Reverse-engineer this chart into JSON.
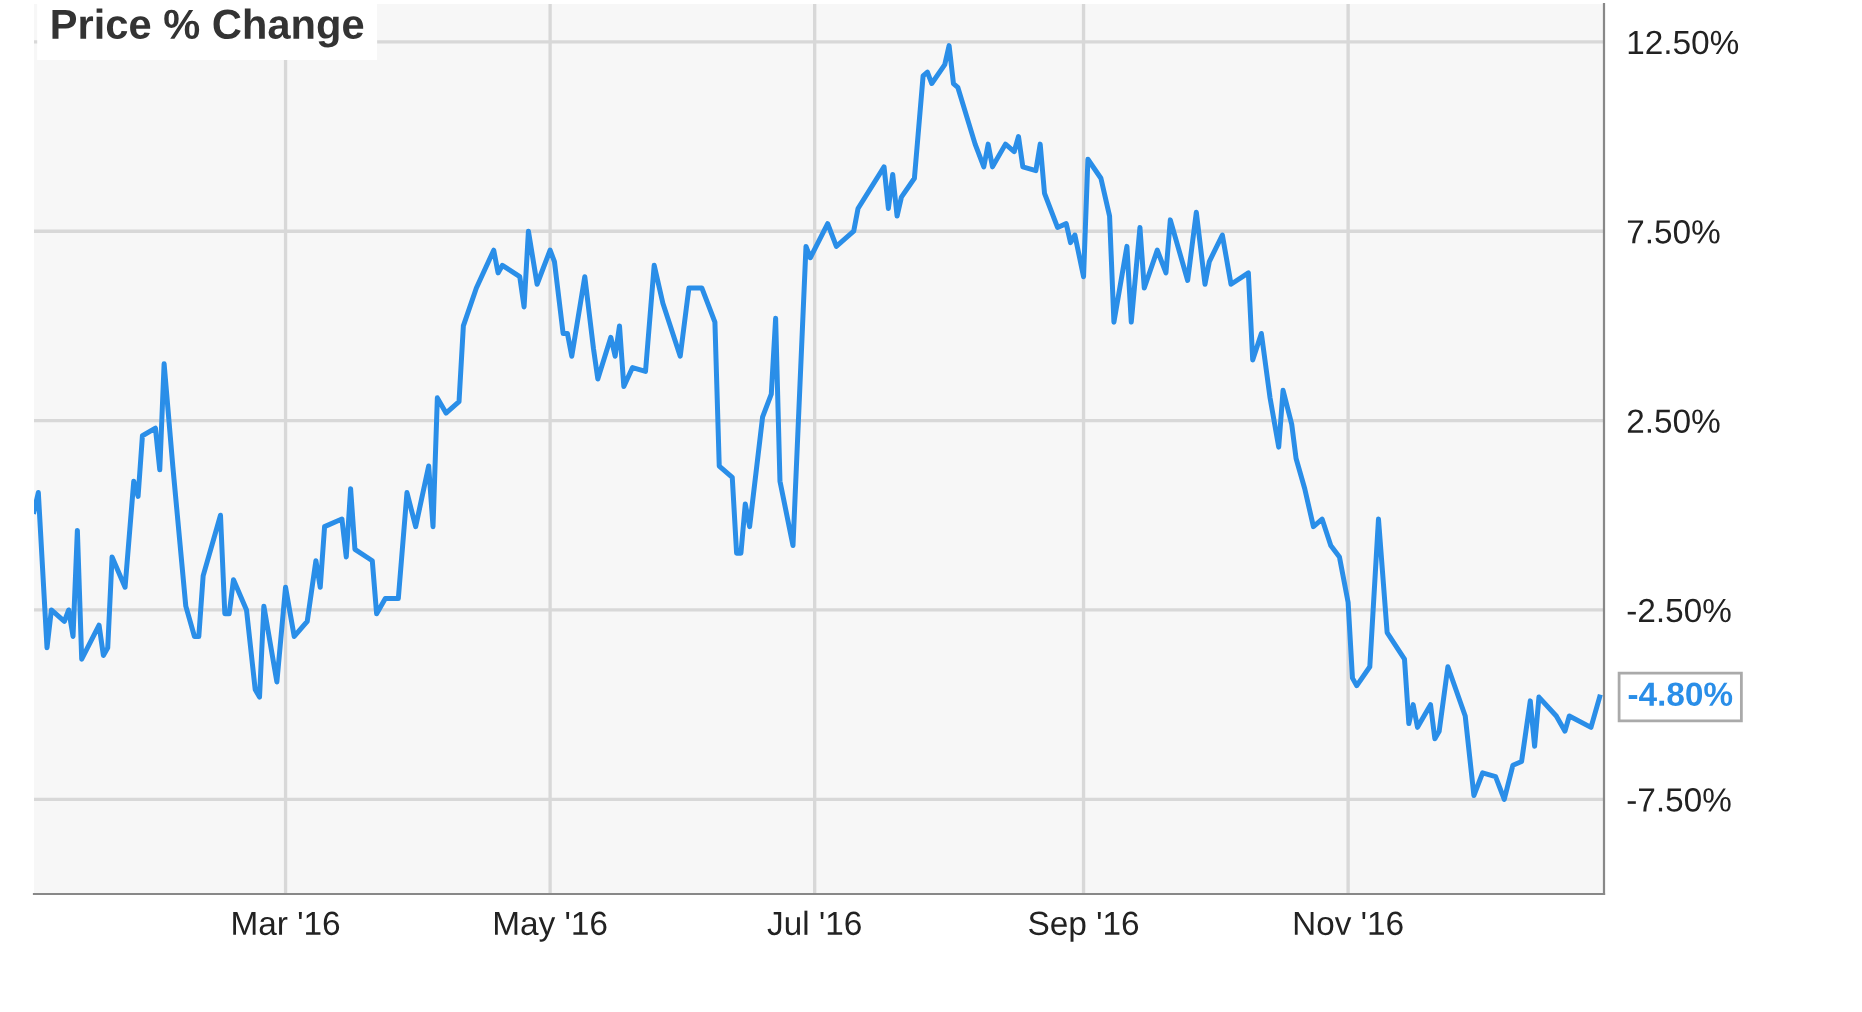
{
  "chart_data": {
    "type": "line",
    "title": "Price % Change",
    "x": [
      "2016-01-03",
      "2016-01-04",
      "2016-01-06",
      "2016-01-07",
      "2016-01-10",
      "2016-01-11",
      "2016-01-12",
      "2016-01-13",
      "2016-01-14",
      "2016-01-18",
      "2016-01-19",
      "2016-01-20",
      "2016-01-21",
      "2016-01-24",
      "2016-01-26",
      "2016-01-27",
      "2016-01-28",
      "2016-01-31",
      "2016-02-01",
      "2016-02-02",
      "2016-02-04",
      "2016-02-07",
      "2016-02-09",
      "2016-02-10",
      "2016-02-11",
      "2016-02-15",
      "2016-02-16",
      "2016-02-17",
      "2016-02-18",
      "2016-02-21",
      "2016-02-23",
      "2016-02-24",
      "2016-02-25",
      "2016-02-28",
      "2016-03-01",
      "2016-03-03",
      "2016-03-06",
      "2016-03-08",
      "2016-03-09",
      "2016-03-10",
      "2016-03-14",
      "2016-03-15",
      "2016-03-16",
      "2016-03-17",
      "2016-03-21",
      "2016-03-22",
      "2016-03-24",
      "2016-03-27",
      "2016-03-29",
      "2016-03-31",
      "2016-04-03",
      "2016-04-04",
      "2016-04-05",
      "2016-04-07",
      "2016-04-10",
      "2016-04-11",
      "2016-04-14",
      "2016-04-18",
      "2016-04-19",
      "2016-04-20",
      "2016-04-24",
      "2016-04-25",
      "2016-04-26",
      "2016-04-28",
      "2016-05-01",
      "2016-05-02",
      "2016-05-04",
      "2016-05-05",
      "2016-05-06",
      "2016-05-09",
      "2016-05-11",
      "2016-05-12",
      "2016-05-15",
      "2016-05-16",
      "2016-05-17",
      "2016-05-18",
      "2016-05-20",
      "2016-05-23",
      "2016-05-25",
      "2016-05-27",
      "2016-05-31",
      "2016-06-02",
      "2016-06-05",
      "2016-06-08",
      "2016-06-09",
      "2016-06-12",
      "2016-06-13",
      "2016-06-14",
      "2016-06-15",
      "2016-06-16",
      "2016-06-19",
      "2016-06-21",
      "2016-06-22",
      "2016-06-23",
      "2016-06-26",
      "2016-06-29",
      "2016-06-30",
      "2016-07-04",
      "2016-07-06",
      "2016-07-10",
      "2016-07-11",
      "2016-07-17",
      "2016-07-18",
      "2016-07-19",
      "2016-07-20",
      "2016-07-21",
      "2016-07-24",
      "2016-07-26",
      "2016-07-27",
      "2016-07-28",
      "2016-07-31",
      "2016-08-01",
      "2016-08-02",
      "2016-08-03",
      "2016-08-07",
      "2016-08-09",
      "2016-08-10",
      "2016-08-11",
      "2016-08-14",
      "2016-08-16",
      "2016-08-17",
      "2016-08-18",
      "2016-08-21",
      "2016-08-22",
      "2016-08-23",
      "2016-08-26",
      "2016-08-28",
      "2016-08-29",
      "2016-08-30",
      "2016-09-01",
      "2016-09-02",
      "2016-09-05",
      "2016-09-07",
      "2016-09-08",
      "2016-09-11",
      "2016-09-12",
      "2016-09-14",
      "2016-09-15",
      "2016-09-18",
      "2016-09-20",
      "2016-09-21",
      "2016-09-25",
      "2016-09-27",
      "2016-09-29",
      "2016-09-30",
      "2016-10-03",
      "2016-10-05",
      "2016-10-09",
      "2016-10-10",
      "2016-10-12",
      "2016-10-14",
      "2016-10-16",
      "2016-10-17",
      "2016-10-19",
      "2016-10-20",
      "2016-10-22",
      "2016-10-24",
      "2016-10-26",
      "2016-10-28",
      "2016-10-30",
      "2016-11-01",
      "2016-11-02",
      "2016-11-03",
      "2016-11-06",
      "2016-11-08",
      "2016-11-10",
      "2016-11-14",
      "2016-11-15",
      "2016-11-16",
      "2016-11-17",
      "2016-11-20",
      "2016-11-21",
      "2016-11-22",
      "2016-11-24",
      "2016-11-28",
      "2016-11-30",
      "2016-12-02",
      "2016-12-05",
      "2016-12-07",
      "2016-12-09",
      "2016-12-11",
      "2016-12-13",
      "2016-12-14",
      "2016-12-15",
      "2016-12-19",
      "2016-12-21",
      "2016-12-22",
      "2016-12-27",
      "2016-12-29"
    ],
    "series": [
      {
        "color": "#2a8ee8",
        "values": [
          0.1,
          0.6,
          -3.5,
          -2.5,
          -2.8,
          -2.5,
          -3.2,
          -0.4,
          -3.8,
          -2.9,
          -3.7,
          -3.5,
          -1.1,
          -1.9,
          0.9,
          0.5,
          2.1,
          2.3,
          1.2,
          4.0,
          1.3,
          -2.4,
          -3.2,
          -3.2,
          -1.6,
          0.0,
          -2.6,
          -2.6,
          -1.7,
          -2.5,
          -4.6,
          -4.8,
          -2.4,
          -4.4,
          -1.9,
          -3.2,
          -2.8,
          -1.2,
          -1.9,
          -0.3,
          -0.1,
          -1.1,
          0.7,
          -0.9,
          -1.2,
          -2.6,
          -2.2,
          -2.2,
          0.6,
          -0.3,
          1.3,
          -0.3,
          3.1,
          2.7,
          3.0,
          5.0,
          6.0,
          7.0,
          6.4,
          6.6,
          6.3,
          5.5,
          7.5,
          6.1,
          7.0,
          6.7,
          4.8,
          4.8,
          4.2,
          6.3,
          4.4,
          3.6,
          4.7,
          4.2,
          5.0,
          3.4,
          3.9,
          3.8,
          6.6,
          5.6,
          4.2,
          6.0,
          6.0,
          5.1,
          1.3,
          1.0,
          -1.0,
          -1.0,
          0.3,
          -0.3,
          2.6,
          3.2,
          5.2,
          0.9,
          -0.8,
          7.1,
          6.8,
          7.7,
          7.1,
          7.5,
          8.1,
          9.2,
          8.1,
          9.0,
          7.9,
          8.4,
          8.9,
          11.6,
          11.7,
          11.4,
          11.9,
          12.4,
          11.4,
          11.3,
          9.8,
          9.2,
          9.8,
          9.2,
          9.8,
          9.6,
          10.0,
          9.2,
          9.1,
          9.8,
          8.5,
          7.6,
          7.7,
          7.2,
          7.4,
          6.3,
          9.4,
          8.9,
          7.9,
          5.1,
          7.1,
          5.1,
          7.6,
          6.0,
          7.0,
          6.4,
          7.8,
          6.2,
          8.0,
          6.1,
          6.7,
          7.4,
          6.1,
          6.4,
          4.1,
          4.8,
          3.1,
          1.8,
          3.3,
          2.4,
          1.5,
          0.7,
          -0.3,
          -0.1,
          -0.8,
          -1.1,
          -2.3,
          -4.3,
          -4.5,
          -4.0,
          -0.1,
          -3.1,
          -3.8,
          -5.5,
          -5.0,
          -5.6,
          -5.0,
          -5.9,
          -5.7,
          -4.0,
          -5.3,
          -7.4,
          -6.8,
          -6.9,
          -7.5,
          -6.6,
          -6.5,
          -4.9,
          -6.1,
          -4.8,
          -5.3,
          -5.7,
          -5.3,
          -5.6,
          -4.8
        ]
      }
    ],
    "xlim": [
      "2016-01-03",
      "2016-12-30"
    ],
    "xticks": [
      {
        "value": "2016-03-01",
        "label": "Mar '16"
      },
      {
        "value": "2016-05-01",
        "label": "May '16"
      },
      {
        "value": "2016-07-01",
        "label": "Jul '16"
      },
      {
        "value": "2016-09-01",
        "label": "Sep '16"
      },
      {
        "value": "2016-11-01",
        "label": "Nov '16"
      }
    ],
    "ylim": [
      -10,
      13.5
    ],
    "yticks": [
      {
        "value": 12.5,
        "label": "12.50%"
      },
      {
        "value": 7.5,
        "label": "7.50%"
      },
      {
        "value": 2.5,
        "label": "2.50%"
      },
      {
        "value": -2.5,
        "label": "-2.50%"
      },
      {
        "value": -7.5,
        "label": "-7.50%"
      }
    ],
    "annotations": [
      {
        "text": "-4.80%",
        "x": "2016-12-29",
        "y": -4.8
      }
    ],
    "grid": true,
    "legend": false,
    "marker": "none",
    "line_style": "solid"
  }
}
